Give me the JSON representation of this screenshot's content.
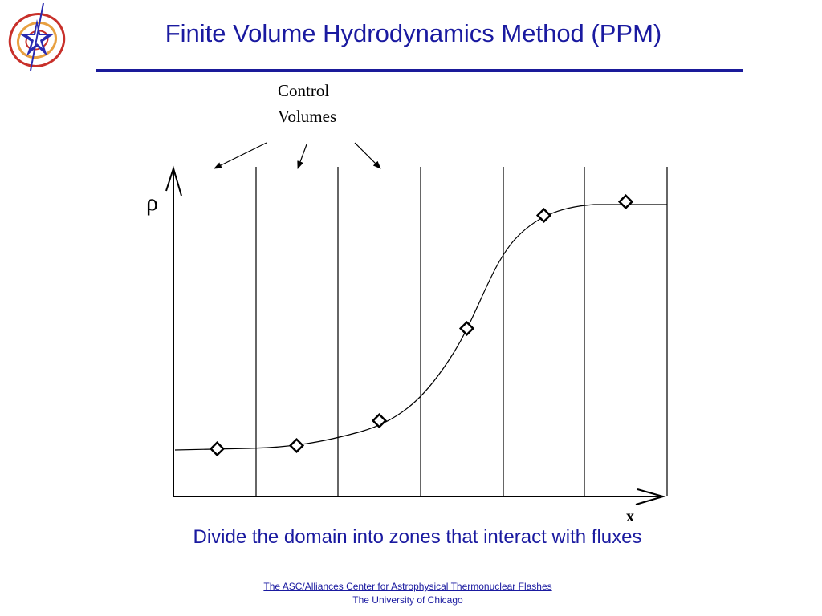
{
  "slide": {
    "title": "Finite Volume Hydrodynamics Method (PPM)",
    "caption": "Divide the domain into zones that interact with fluxes"
  },
  "diagram": {
    "annotation_line1": "Control",
    "annotation_line2": "Volumes",
    "y_axis_label": "ρ",
    "x_axis_label": "x"
  },
  "footer": {
    "link_text": "The ASC/Alliances Center for Astrophysical Thermonuclear Flashes",
    "org_text": "The University of Chicago"
  },
  "colors": {
    "title_blue": "#1a1aa0",
    "rule_blue": "#1a1a9a",
    "logo_red": "#c8302a",
    "logo_orange": "#e8a040",
    "logo_star": "#2a2ab0"
  },
  "icons": {
    "logo": "flash-center-logo-icon"
  }
}
